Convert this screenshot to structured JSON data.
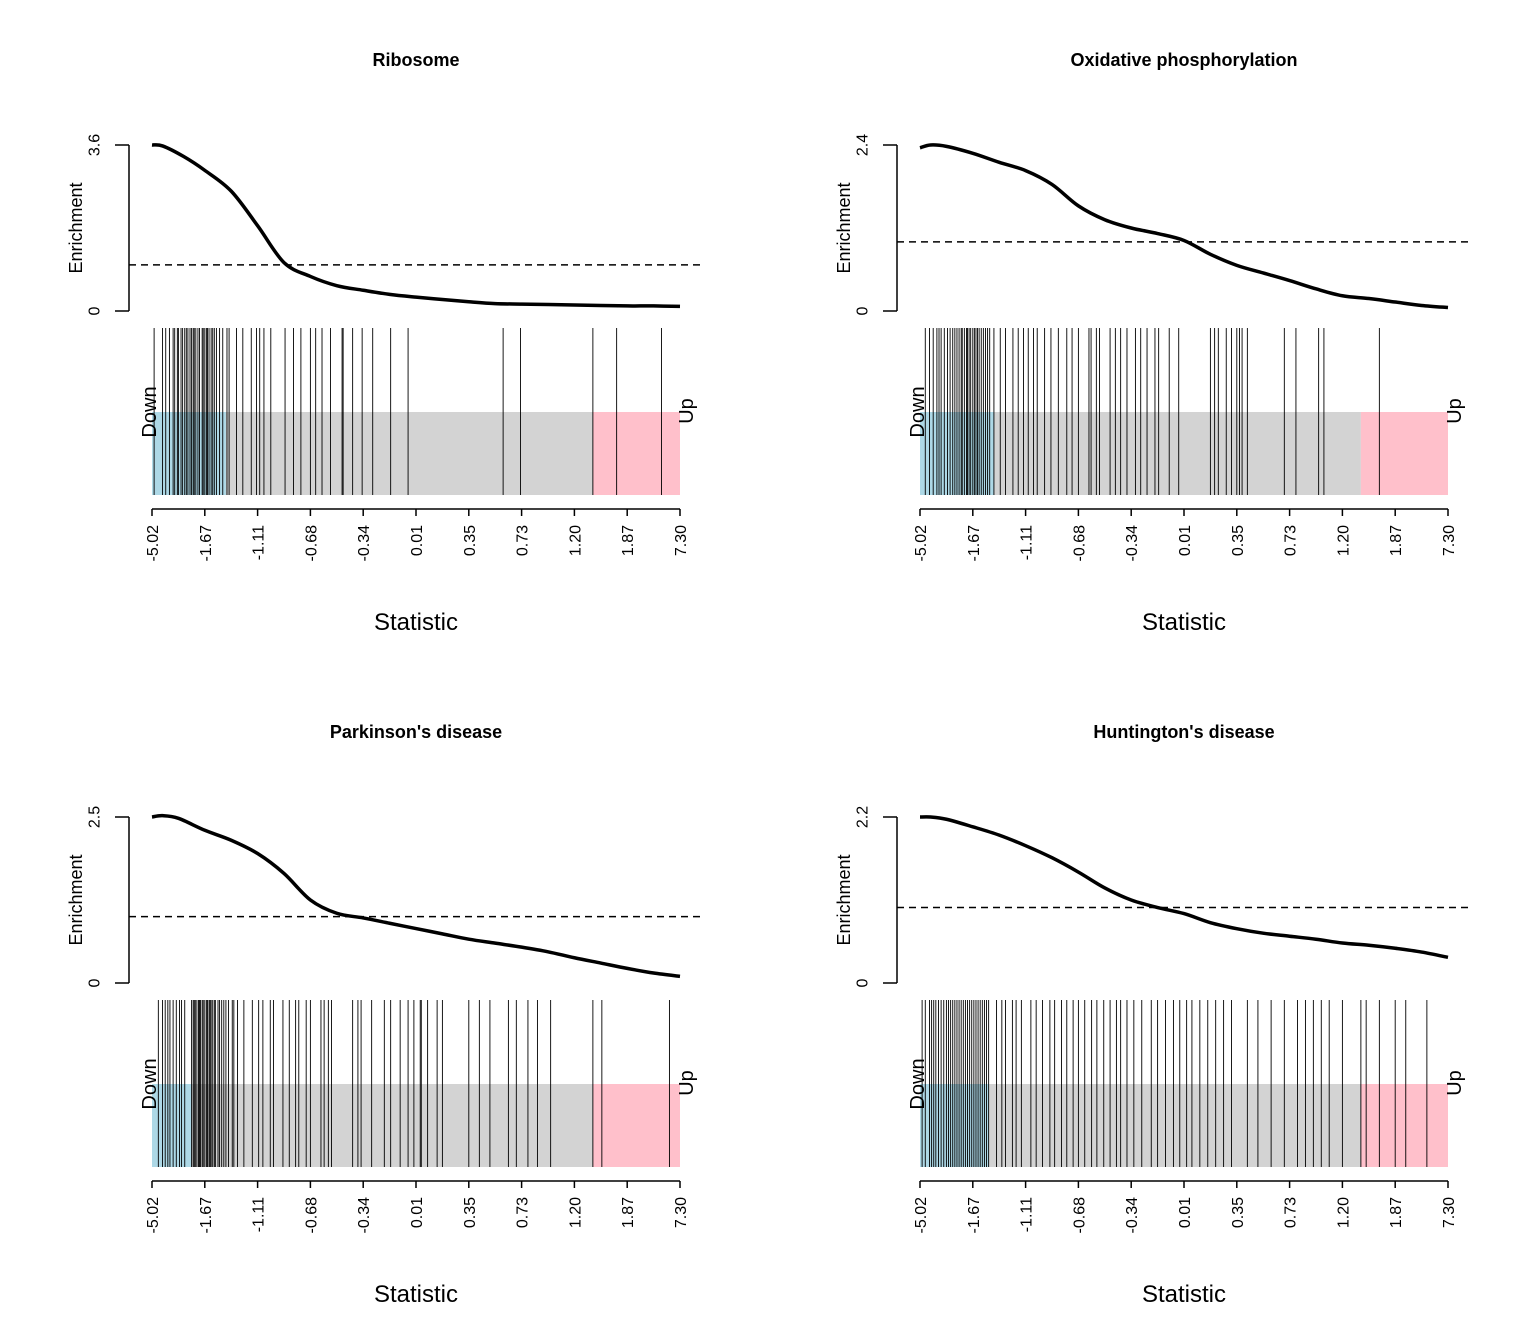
{
  "colors": {
    "down_region": "#add8e6",
    "middle_region": "#d3d3d3",
    "up_region": "#ffc0cb",
    "curve": "#000000",
    "barcode": "#000000"
  },
  "chart_data": [
    {
      "type": "barcode-enrichment",
      "title": "Ribosome",
      "xlabel": "Statistic",
      "ylabel": "Enrichment",
      "ylim": [
        0,
        3.6
      ],
      "y_tick_labels": [
        "0",
        "3.6"
      ],
      "x_tick_labels": [
        "-5.02",
        "-1.67",
        "-1.11",
        "-0.68",
        "-0.34",
        "0.01",
        "0.35",
        "0.73",
        "1.20",
        "1.87",
        "7.30"
      ],
      "rank_range": [
        0,
        1
      ],
      "down_label": "Down",
      "up_label": "Up",
      "down_region_end": 0.14,
      "up_region_start": 0.835,
      "expected_enrichment": 1.0,
      "curve": {
        "x": [
          0,
          0.02,
          0.06,
          0.1,
          0.15,
          0.2,
          0.25,
          0.3,
          0.35,
          0.4,
          0.45,
          0.5,
          0.55,
          0.6,
          0.65,
          0.7,
          0.75,
          0.8,
          0.85,
          0.9,
          0.95,
          1.0
        ],
        "y": [
          3.6,
          3.58,
          3.35,
          3.05,
          2.6,
          1.85,
          1.05,
          0.75,
          0.55,
          0.45,
          0.36,
          0.3,
          0.25,
          0.2,
          0.16,
          0.15,
          0.14,
          0.13,
          0.12,
          0.11,
          0.11,
          0.1
        ]
      },
      "barcode_positions": [
        0.004,
        0.02,
        0.026,
        0.033,
        0.04,
        0.043,
        0.048,
        0.05,
        0.055,
        0.058,
        0.062,
        0.065,
        0.068,
        0.072,
        0.075,
        0.078,
        0.08,
        0.083,
        0.087,
        0.09,
        0.095,
        0.097,
        0.1,
        0.103,
        0.105,
        0.108,
        0.112,
        0.115,
        0.118,
        0.122,
        0.128,
        0.134,
        0.142,
        0.146,
        0.16,
        0.172,
        0.188,
        0.198,
        0.204,
        0.212,
        0.225,
        0.252,
        0.268,
        0.282,
        0.3,
        0.31,
        0.322,
        0.338,
        0.36,
        0.362,
        0.38,
        0.398,
        0.418,
        0.452,
        0.485,
        0.665,
        0.698,
        0.835,
        0.88,
        0.965
      ]
    },
    {
      "type": "barcode-enrichment",
      "title": "Oxidative phosphorylation",
      "xlabel": "Statistic",
      "ylabel": "Enrichment",
      "ylim": [
        0,
        2.4
      ],
      "y_tick_labels": [
        "0",
        "2.4"
      ],
      "x_tick_labels": [
        "-5.02",
        "-1.67",
        "-1.11",
        "-0.68",
        "-0.34",
        "0.01",
        "0.35",
        "0.73",
        "1.20",
        "1.87",
        "7.30"
      ],
      "rank_range": [
        0,
        1
      ],
      "down_label": "Down",
      "up_label": "Up",
      "down_region_end": 0.14,
      "up_region_start": 0.835,
      "expected_enrichment": 1.0,
      "curve": {
        "x": [
          0,
          0.02,
          0.05,
          0.1,
          0.15,
          0.2,
          0.25,
          0.3,
          0.35,
          0.4,
          0.45,
          0.5,
          0.55,
          0.6,
          0.65,
          0.7,
          0.75,
          0.8,
          0.85,
          0.9,
          0.95,
          1.0
        ],
        "y": [
          2.36,
          2.4,
          2.38,
          2.28,
          2.15,
          2.03,
          1.83,
          1.52,
          1.32,
          1.2,
          1.12,
          1.02,
          0.82,
          0.66,
          0.55,
          0.44,
          0.32,
          0.22,
          0.18,
          0.13,
          0.08,
          0.05
        ]
      },
      "barcode_positions": [
        0.01,
        0.018,
        0.025,
        0.032,
        0.036,
        0.04,
        0.046,
        0.052,
        0.057,
        0.062,
        0.066,
        0.07,
        0.074,
        0.078,
        0.08,
        0.084,
        0.088,
        0.09,
        0.093,
        0.096,
        0.1,
        0.103,
        0.106,
        0.109,
        0.112,
        0.116,
        0.12,
        0.124,
        0.128,
        0.132,
        0.14,
        0.152,
        0.162,
        0.176,
        0.186,
        0.196,
        0.205,
        0.215,
        0.222,
        0.236,
        0.248,
        0.262,
        0.278,
        0.288,
        0.3,
        0.32,
        0.324,
        0.334,
        0.34,
        0.36,
        0.37,
        0.38,
        0.392,
        0.408,
        0.418,
        0.43,
        0.445,
        0.452,
        0.472,
        0.49,
        0.55,
        0.558,
        0.565,
        0.58,
        0.59,
        0.6,
        0.605,
        0.61,
        0.62,
        0.69,
        0.712,
        0.755,
        0.765,
        0.87
      ]
    },
    {
      "type": "barcode-enrichment",
      "title": "Parkinson's disease",
      "xlabel": "Statistic",
      "ylabel": "Enrichment",
      "ylim": [
        0,
        2.5
      ],
      "y_tick_labels": [
        "0",
        "2.5"
      ],
      "x_tick_labels": [
        "-5.02",
        "-1.67",
        "-1.11",
        "-0.68",
        "-0.34",
        "0.01",
        "0.35",
        "0.73",
        "1.20",
        "1.87",
        "7.30"
      ],
      "rank_range": [
        0,
        1
      ],
      "down_label": "Down",
      "up_label": "Up",
      "down_region_end": 0.075,
      "up_region_start": 0.835,
      "expected_enrichment": 1.0,
      "curve": {
        "x": [
          0,
          0.02,
          0.05,
          0.1,
          0.15,
          0.2,
          0.25,
          0.3,
          0.35,
          0.4,
          0.45,
          0.5,
          0.55,
          0.6,
          0.65,
          0.7,
          0.75,
          0.8,
          0.85,
          0.9,
          0.95,
          1.0
        ],
        "y": [
          2.5,
          2.52,
          2.48,
          2.3,
          2.15,
          1.95,
          1.65,
          1.25,
          1.05,
          0.98,
          0.9,
          0.82,
          0.74,
          0.66,
          0.6,
          0.54,
          0.47,
          0.38,
          0.3,
          0.22,
          0.15,
          0.1
        ]
      },
      "barcode_positions": [
        0.012,
        0.02,
        0.025,
        0.03,
        0.034,
        0.04,
        0.046,
        0.052,
        0.056,
        0.062,
        0.075,
        0.078,
        0.08,
        0.082,
        0.085,
        0.088,
        0.09,
        0.092,
        0.095,
        0.097,
        0.1,
        0.103,
        0.105,
        0.108,
        0.11,
        0.112,
        0.115,
        0.118,
        0.12,
        0.125,
        0.128,
        0.132,
        0.136,
        0.14,
        0.145,
        0.152,
        0.155,
        0.162,
        0.174,
        0.19,
        0.202,
        0.21,
        0.224,
        0.23,
        0.248,
        0.26,
        0.272,
        0.278,
        0.292,
        0.3,
        0.32,
        0.326,
        0.334,
        0.34,
        0.38,
        0.39,
        0.396,
        0.416,
        0.44,
        0.452,
        0.47,
        0.485,
        0.496,
        0.508,
        0.51,
        0.522,
        0.54,
        0.55,
        0.6,
        0.62,
        0.64,
        0.675,
        0.69,
        0.712,
        0.73,
        0.755,
        0.835,
        0.852,
        0.98
      ]
    },
    {
      "type": "barcode-enrichment",
      "title": "Huntington's disease",
      "xlabel": "Statistic",
      "ylabel": "Enrichment",
      "ylim": [
        0,
        2.2
      ],
      "y_tick_labels": [
        "0",
        "2.2"
      ],
      "x_tick_labels": [
        "-5.02",
        "-1.67",
        "-1.11",
        "-0.68",
        "-0.34",
        "0.01",
        "0.35",
        "0.73",
        "1.20",
        "1.87",
        "7.30"
      ],
      "rank_range": [
        0,
        1
      ],
      "down_label": "Down",
      "up_label": "Up",
      "down_region_end": 0.13,
      "up_region_start": 0.835,
      "expected_enrichment": 1.0,
      "curve": {
        "x": [
          0,
          0.02,
          0.05,
          0.1,
          0.15,
          0.2,
          0.25,
          0.3,
          0.35,
          0.4,
          0.45,
          0.5,
          0.55,
          0.6,
          0.65,
          0.7,
          0.75,
          0.8,
          0.85,
          0.9,
          0.95,
          1.0
        ],
        "y": [
          2.2,
          2.2,
          2.17,
          2.07,
          1.96,
          1.82,
          1.66,
          1.47,
          1.26,
          1.1,
          1.0,
          0.92,
          0.8,
          0.72,
          0.66,
          0.62,
          0.58,
          0.53,
          0.5,
          0.46,
          0.41,
          0.34
        ]
      },
      "barcode_positions": [
        0.004,
        0.01,
        0.018,
        0.022,
        0.026,
        0.03,
        0.035,
        0.04,
        0.045,
        0.05,
        0.054,
        0.058,
        0.062,
        0.066,
        0.07,
        0.074,
        0.078,
        0.082,
        0.086,
        0.09,
        0.094,
        0.098,
        0.102,
        0.106,
        0.11,
        0.114,
        0.118,
        0.122,
        0.126,
        0.13,
        0.145,
        0.155,
        0.162,
        0.175,
        0.182,
        0.192,
        0.21,
        0.22,
        0.232,
        0.246,
        0.255,
        0.268,
        0.278,
        0.29,
        0.3,
        0.312,
        0.325,
        0.335,
        0.348,
        0.36,
        0.372,
        0.38,
        0.392,
        0.405,
        0.42,
        0.438,
        0.45,
        0.465,
        0.48,
        0.492,
        0.505,
        0.515,
        0.53,
        0.545,
        0.56,
        0.575,
        0.59,
        0.62,
        0.64,
        0.665,
        0.69,
        0.715,
        0.73,
        0.745,
        0.76,
        0.775,
        0.8,
        0.835,
        0.845,
        0.87,
        0.9,
        0.92,
        0.96
      ]
    }
  ]
}
